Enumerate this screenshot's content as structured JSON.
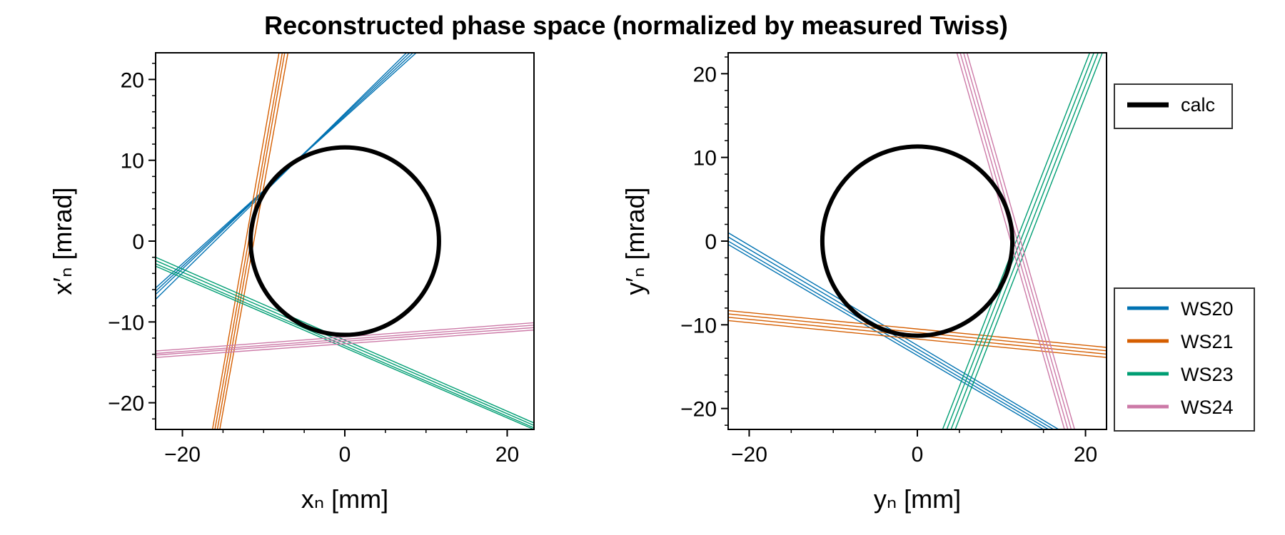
{
  "title": "Reconstructed phase space (normalized by measured Twiss)",
  "colors": {
    "calc": "#000000",
    "WS20": "#0072B2",
    "WS21": "#D55E00",
    "WS23": "#009E73",
    "WS24": "#CC79A7"
  },
  "legend": {
    "calc_label": "calc",
    "ws_labels": [
      "WS20",
      "WS21",
      "WS23",
      "WS24"
    ]
  },
  "chart_data": [
    {
      "type": "line",
      "xlabel": "xₙ [mm]",
      "ylabel": "x′ₙ [mrad]",
      "xlim": [
        -23.3,
        23.3
      ],
      "ylim": [
        -23.3,
        23.3
      ],
      "xticks": [
        "−20",
        "0",
        "20"
      ],
      "xtick_values": [
        -20,
        0,
        20
      ],
      "yticks": [
        "−20",
        "−10",
        "0",
        "10",
        "20"
      ],
      "ytick_values": [
        -20,
        -10,
        0,
        10,
        20
      ],
      "circle": {
        "name": "calc",
        "cx": 0,
        "cy": 0,
        "r": 11.6
      },
      "series": [
        {
          "name": "WS20",
          "lines": [
            [
              [
                -23.3,
                -7.2
              ],
              [
                7.6,
                23.3
              ]
            ],
            [
              [
                -23.3,
                -6.6
              ],
              [
                8.0,
                23.3
              ]
            ],
            [
              [
                -23.3,
                -6.2
              ],
              [
                8.4,
                23.3
              ]
            ],
            [
              [
                -23.3,
                -5.8
              ],
              [
                8.8,
                23.3
              ]
            ]
          ]
        },
        {
          "name": "WS21",
          "lines": [
            [
              [
                -16.3,
                -23.3
              ],
              [
                -8.1,
                23.3
              ]
            ],
            [
              [
                -16.0,
                -23.3
              ],
              [
                -7.7,
                23.3
              ]
            ],
            [
              [
                -15.7,
                -23.3
              ],
              [
                -7.4,
                23.3
              ]
            ],
            [
              [
                -15.4,
                -23.3
              ],
              [
                -7.0,
                23.3
              ]
            ]
          ]
        },
        {
          "name": "WS23",
          "lines": [
            [
              [
                -23.3,
                -2.0
              ],
              [
                23.3,
                -22.5
              ]
            ],
            [
              [
                -23.3,
                -2.4
              ],
              [
                23.3,
                -22.8
              ]
            ],
            [
              [
                -23.3,
                -2.8
              ],
              [
                23.3,
                -23.1
              ]
            ],
            [
              [
                -23.3,
                -3.1
              ],
              [
                23.3,
                -23.3
              ]
            ]
          ]
        },
        {
          "name": "WS24",
          "lines": [
            [
              [
                -23.3,
                -13.6
              ],
              [
                23.3,
                -10.1
              ]
            ],
            [
              [
                -23.3,
                -13.9
              ],
              [
                23.3,
                -10.4
              ]
            ],
            [
              [
                -23.3,
                -14.1
              ],
              [
                23.3,
                -10.7
              ]
            ],
            [
              [
                -23.3,
                -14.4
              ],
              [
                23.3,
                -11.0
              ]
            ]
          ]
        }
      ]
    },
    {
      "type": "line",
      "xlabel": "yₙ [mm]",
      "ylabel": "y′ₙ [mrad]",
      "xlim": [
        -22.5,
        22.5
      ],
      "ylim": [
        -22.5,
        22.5
      ],
      "xticks": [
        "−20",
        "0",
        "20"
      ],
      "xtick_values": [
        -20,
        0,
        20
      ],
      "yticks": [
        "−20",
        "−10",
        "0",
        "10",
        "20"
      ],
      "ytick_values": [
        -20,
        -10,
        0,
        10,
        20
      ],
      "circle": {
        "name": "calc",
        "cx": 0,
        "cy": 0,
        "r": 11.3
      },
      "series": [
        {
          "name": "WS20",
          "lines": [
            [
              [
                -22.5,
                1.0
              ],
              [
                16.8,
                -22.5
              ]
            ],
            [
              [
                -22.5,
                0.5
              ],
              [
                16.2,
                -22.5
              ]
            ],
            [
              [
                -22.5,
                0.0
              ],
              [
                15.6,
                -22.5
              ]
            ],
            [
              [
                -22.5,
                -0.4
              ],
              [
                15.0,
                -22.5
              ]
            ]
          ]
        },
        {
          "name": "WS21",
          "lines": [
            [
              [
                -22.5,
                -8.3
              ],
              [
                22.5,
                -12.7
              ]
            ],
            [
              [
                -22.5,
                -8.7
              ],
              [
                22.5,
                -13.1
              ]
            ],
            [
              [
                -22.5,
                -9.1
              ],
              [
                22.5,
                -13.5
              ]
            ],
            [
              [
                -22.5,
                -9.5
              ],
              [
                22.5,
                -13.9
              ]
            ]
          ]
        },
        {
          "name": "WS23",
          "lines": [
            [
              [
                3.0,
                -22.5
              ],
              [
                20.5,
                22.5
              ]
            ],
            [
              [
                3.5,
                -22.5
              ],
              [
                21.0,
                22.5
              ]
            ],
            [
              [
                4.0,
                -22.5
              ],
              [
                21.5,
                22.5
              ]
            ],
            [
              [
                4.5,
                -22.5
              ],
              [
                22.0,
                22.5
              ]
            ]
          ]
        },
        {
          "name": "WS24",
          "lines": [
            [
              [
                4.7,
                22.5
              ],
              [
                17.5,
                -22.5
              ]
            ],
            [
              [
                5.1,
                22.5
              ],
              [
                17.9,
                -22.5
              ]
            ],
            [
              [
                5.5,
                22.5
              ],
              [
                18.3,
                -22.5
              ]
            ],
            [
              [
                5.9,
                22.5
              ],
              [
                18.7,
                -22.5
              ]
            ]
          ]
        }
      ]
    }
  ]
}
